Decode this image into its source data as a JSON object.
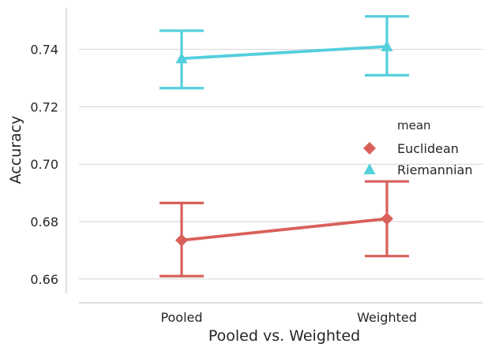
{
  "chart_data": {
    "type": "line",
    "xlabel": "Pooled vs. Weighted",
    "ylabel": "Accuracy",
    "categories": [
      "Pooled",
      "Weighted"
    ],
    "ylim": [
      0.655,
      0.755
    ],
    "yticks": [
      0.66,
      0.68,
      0.7,
      0.72,
      0.74
    ],
    "ytick_labels": [
      "0.66",
      "0.68",
      "0.70",
      "0.72",
      "0.74"
    ],
    "grid": "horizontal",
    "legend": {
      "title": "mean",
      "placement": "right"
    },
    "series": [
      {
        "name": "Euclidean",
        "marker": "diamond",
        "color": "#d9605a",
        "values": [
          0.6735,
          0.681
        ],
        "error_low": [
          0.661,
          0.668
        ],
        "error_high": [
          0.6865,
          0.694
        ]
      },
      {
        "name": "Riemannian",
        "marker": "triangle",
        "color": "#54cfdc",
        "values": [
          0.7368,
          0.741
        ],
        "error_low": [
          0.7265,
          0.731
        ],
        "error_high": [
          0.7465,
          0.7515
        ]
      }
    ]
  }
}
